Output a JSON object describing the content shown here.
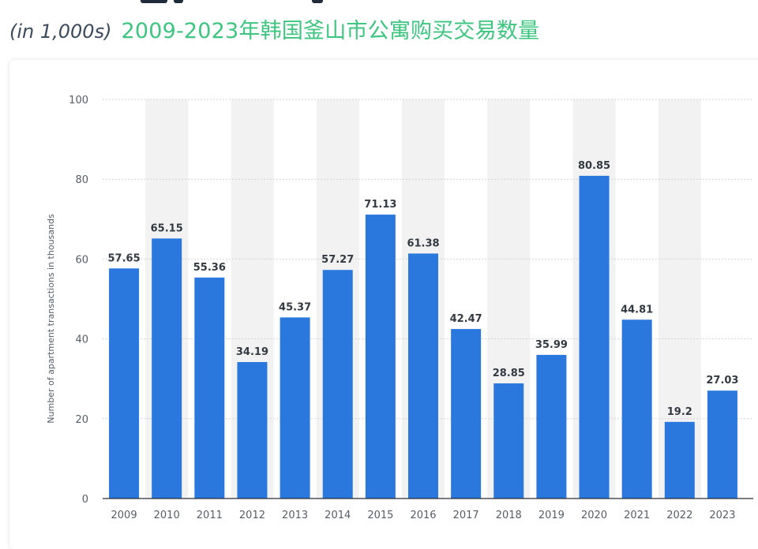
{
  "header": {
    "subtitle": "(in 1,000s)",
    "chinese_title": "2009-2023年韩国釜山市公寓购买交易数量"
  },
  "colors": {
    "bar": "#2a78de",
    "band": "#f2f2f2",
    "grid": "#cfd3d8",
    "title_green": "#3cc67f"
  },
  "chart_data": {
    "type": "bar",
    "categories": [
      "2009",
      "2010",
      "2011",
      "2012",
      "2013",
      "2014",
      "2015",
      "2016",
      "2017",
      "2018",
      "2019",
      "2020",
      "2021",
      "2022",
      "2023"
    ],
    "values": [
      57.65,
      65.15,
      55.36,
      34.19,
      45.37,
      57.27,
      71.13,
      61.38,
      42.47,
      28.85,
      35.99,
      80.85,
      44.81,
      19.2,
      27.03
    ],
    "value_labels": [
      "57.65",
      "65.15",
      "55.36",
      "34.19",
      "45.37",
      "57.27",
      "71.13",
      "61.38",
      "42.47",
      "28.85",
      "35.99",
      "80.85",
      "44.81",
      "19.2",
      "27.03"
    ],
    "ylabel": "Number of apartment transactions in thousands",
    "xlabel": "",
    "ylim": [
      0,
      100
    ],
    "yticks": [
      "0",
      "20",
      "40",
      "60",
      "80",
      "100"
    ],
    "grid": true,
    "legend": "none"
  }
}
